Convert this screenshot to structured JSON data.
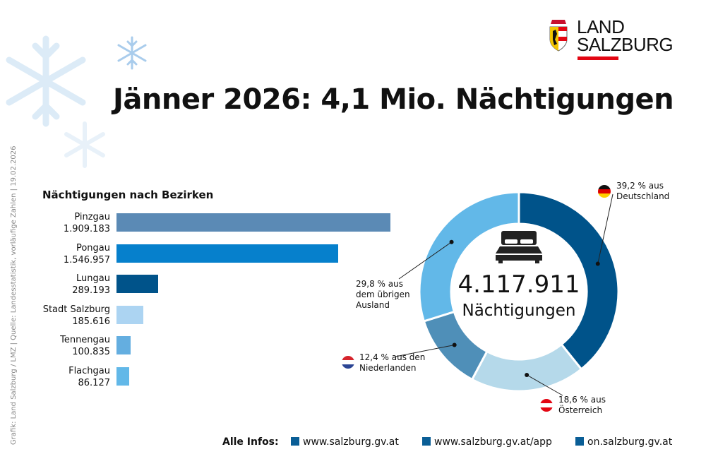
{
  "title": "Jänner 2026: 4,1 Mio. Nächtigungen",
  "logo": {
    "line1": "LAND",
    "line2": "SALZBURG",
    "accent": "#e30613"
  },
  "side_note": "Grafik: Land Salzburg / LMZ | Quelle: Landesstatistik, vorläufige Zahlen | 19.02.2026",
  "footer": {
    "label": "Alle Infos:",
    "links": [
      "www.salzburg.gv.at",
      "www.salzburg.gv.at/app",
      "on.salzburg.gv.at"
    ]
  },
  "chart_data": [
    {
      "type": "bar",
      "orientation": "horizontal",
      "title": "Nächtigungen nach Bezirken",
      "categories": [
        "Pinzgau",
        "Pongau",
        "Lungau",
        "Stadt Salzburg",
        "Tennengau",
        "Flachgau"
      ],
      "values": [
        1909183,
        1546957,
        289193,
        185616,
        100835,
        86127
      ],
      "value_labels": [
        "1.909.183",
        "1.546.957",
        "289.193",
        "185.616",
        "100.835",
        "86.127"
      ],
      "colors": [
        "#5b8ab5",
        "#0680cc",
        "#00538a",
        "#acd4f2",
        "#64aee0",
        "#62b8e8"
      ],
      "grid": false
    },
    {
      "type": "pie",
      "donut": true,
      "center_value": "4.117.911",
      "center_label": "Nächtigungen",
      "center_icon": "bed-icon",
      "slices": [
        {
          "label_line1": "39,2 % aus",
          "label_line2": "Deutschland",
          "value": 39.2,
          "color": "#00538a",
          "flag": "germany"
        },
        {
          "label_line1": "18,6 % aus",
          "label_line2": "Österreich",
          "value": 18.6,
          "color": "#b5d9ea",
          "flag": "austria"
        },
        {
          "label_line1": "12,4 % aus den",
          "label_line2": "Niederlanden",
          "value": 12.4,
          "color": "#4f8fb8",
          "flag": "netherlands"
        },
        {
          "label_line1": "29,8 % aus",
          "label_line2": "dem übrigen",
          "label_line3": "Ausland",
          "value": 29.8,
          "color": "#62b8e8"
        }
      ]
    }
  ]
}
